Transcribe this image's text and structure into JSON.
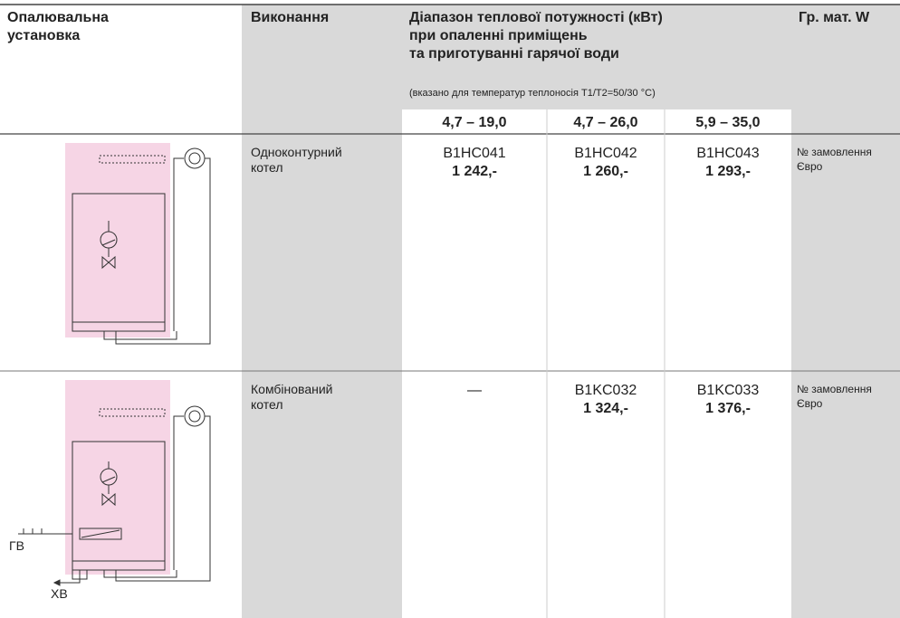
{
  "header": {
    "installation": [
      "Опалювальна",
      "установка"
    ],
    "design": "Виконання",
    "range_title": [
      "Діапазон теплової потужності (кВт)",
      "при опаленні приміщень",
      "та приготуванні гарячої води"
    ],
    "range_note": "(вказано для температур теплоносія T1/T2=50/30 °C)",
    "group": "Гр. мат. W",
    "power_ranges": [
      "4,7 – 19,0",
      "4,7 – 26,0",
      "5,9 – 35,0"
    ]
  },
  "rows": [
    {
      "design": [
        "Одноконтурний",
        "котел"
      ],
      "cells": [
        {
          "code": "B1HC041",
          "price": "1 242,-"
        },
        {
          "code": "B1HC042",
          "price": "1 260,-"
        },
        {
          "code": "B1HC043",
          "price": "1 293,-"
        }
      ],
      "info": [
        "№ замовлення",
        "Євро"
      ]
    },
    {
      "design": [
        "Комбінований",
        "котел"
      ],
      "cells": [
        {
          "code": "—"
        },
        {
          "code": "B1KC032",
          "price": "1 324,-"
        },
        {
          "code": "B1KC033",
          "price": "1 376,-"
        }
      ],
      "info": [
        "№ замовлення",
        "Євро"
      ],
      "diagram_labels": [
        "ГВ",
        "ХВ"
      ]
    }
  ]
}
